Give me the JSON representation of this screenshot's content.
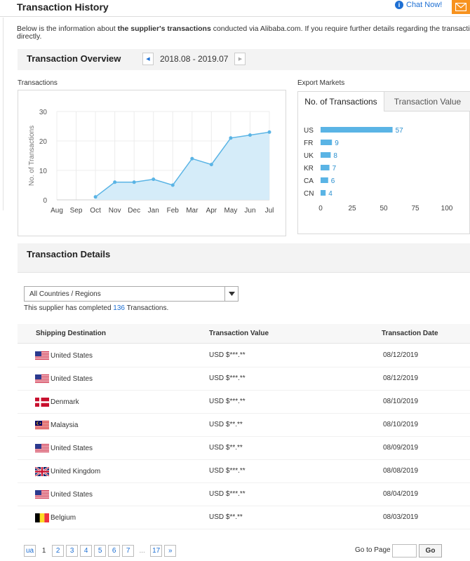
{
  "header": {
    "title": "Transaction History",
    "chat_label": "Chat Now!",
    "chat_icon": "info-icon",
    "mail_icon": "mail-icon",
    "accent_color": "#f7921e"
  },
  "intro": {
    "prefix": "Below is the information about ",
    "bold": "the supplier's transactions",
    "suffix": " conducted via Alibaba.com. If you require further details regarding the transaction data, please contact the supplier",
    "line2": "directly."
  },
  "overview": {
    "title": "Transaction Overview",
    "date_range": "2018.08 - 2019.07",
    "prev_icon": "chevron-left-icon",
    "next_icon": "chevron-right-icon"
  },
  "transactions_chart_label": "Transactions",
  "export_markets_label": "Export Markets",
  "export_tabs": [
    "No. of Transactions",
    "Transaction Value"
  ],
  "chart_data": [
    {
      "type": "area",
      "title": "",
      "xlabel": "",
      "ylabel": "No. of Transactions",
      "categories": [
        "Aug",
        "Sep",
        "Oct",
        "Nov",
        "Dec",
        "Jan",
        "Feb",
        "Mar",
        "Apr",
        "May",
        "Jun",
        "Jul"
      ],
      "values": [
        null,
        null,
        1,
        6,
        6,
        7,
        5,
        14,
        12,
        21,
        22,
        23
      ],
      "yticks": [
        0,
        10,
        20,
        30
      ],
      "ylim": [
        0,
        30
      ],
      "grid": true,
      "color": "#5ab4e5"
    },
    {
      "type": "bar",
      "orientation": "horizontal",
      "categories": [
        "US",
        "FR",
        "UK",
        "KR",
        "CA",
        "CN"
      ],
      "values": [
        57,
        9,
        8,
        7,
        6,
        4
      ],
      "xticks": [
        0,
        25,
        50,
        75,
        100
      ],
      "xlim": [
        0,
        100
      ],
      "color": "#5ab4e5"
    }
  ],
  "details": {
    "title": "Transaction Details",
    "country_select": "All Countries / Regions",
    "completed_prefix": "This supplier has completed ",
    "completed_count": "136",
    "completed_suffix": " Transactions.",
    "columns": [
      "Shipping Destination",
      "Transaction Value",
      "Transaction Date"
    ],
    "rows": [
      {
        "flag": "us",
        "destination": "United States",
        "value": "USD $***.**",
        "date": "08/12/2019"
      },
      {
        "flag": "us",
        "destination": "United States",
        "value": "USD $***.**",
        "date": "08/12/2019"
      },
      {
        "flag": "dk",
        "destination": "Denmark",
        "value": "USD $***.**",
        "date": "08/10/2019"
      },
      {
        "flag": "my",
        "destination": "Malaysia",
        "value": "USD $**.**",
        "date": "08/10/2019"
      },
      {
        "flag": "us",
        "destination": "United States",
        "value": "USD $**.**",
        "date": "08/09/2019"
      },
      {
        "flag": "gb",
        "destination": "United Kingdom",
        "value": "USD $***.**",
        "date": "08/08/2019"
      },
      {
        "flag": "us",
        "destination": "United States",
        "value": "USD $***.**",
        "date": "08/04/2019"
      },
      {
        "flag": "be",
        "destination": "Belgium",
        "value": "USD $**.**",
        "date": "08/03/2019"
      }
    ]
  },
  "pagination": {
    "prev_label": "ua",
    "pages": [
      "1",
      "2",
      "3",
      "4",
      "5",
      "6",
      "7"
    ],
    "current": "1",
    "ellipsis": "...",
    "last": "17",
    "next_label": "»",
    "goto_label": "Go to Page",
    "go_button": "Go"
  }
}
